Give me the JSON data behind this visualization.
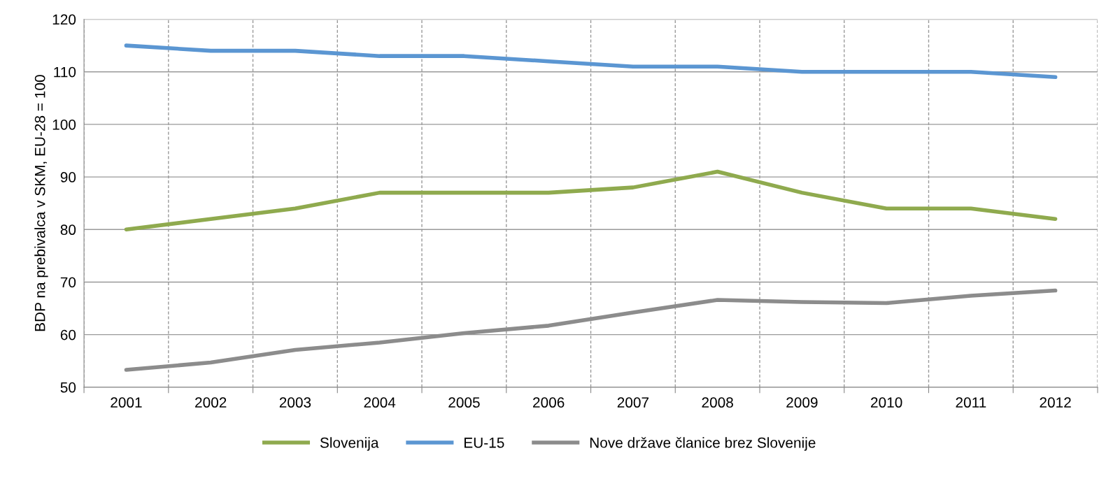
{
  "chart_data": {
    "type": "line",
    "ylabel": "BDP na prebivalca v SKM, EU-28 = 100",
    "categories": [
      "2001",
      "2002",
      "2003",
      "2004",
      "2005",
      "2006",
      "2007",
      "2008",
      "2009",
      "2010",
      "2011",
      "2012"
    ],
    "series": [
      {
        "name": "Slovenija",
        "color": "#8faa4e",
        "values": [
          80,
          82,
          84,
          87,
          87,
          87,
          88,
          91,
          87,
          84,
          84,
          82
        ]
      },
      {
        "name": "EU-15",
        "color": "#5b96d2",
        "values": [
          115,
          114,
          114,
          113,
          113,
          112,
          111,
          111,
          110,
          110,
          110,
          109
        ]
      },
      {
        "name": "Nove države članice brez Slovenije",
        "color": "#8c8c8c",
        "values": [
          53.3,
          54.7,
          57.1,
          58.5,
          60.3,
          61.7,
          64.2,
          66.6,
          66.2,
          66.0,
          67.4,
          68.4
        ]
      }
    ],
    "ylim": [
      50,
      120
    ],
    "yticks": [
      50,
      60,
      70,
      80,
      90,
      100,
      110,
      120
    ],
    "grid": true,
    "legend": "bottom",
    "marker": "none",
    "line_style": "solid"
  }
}
